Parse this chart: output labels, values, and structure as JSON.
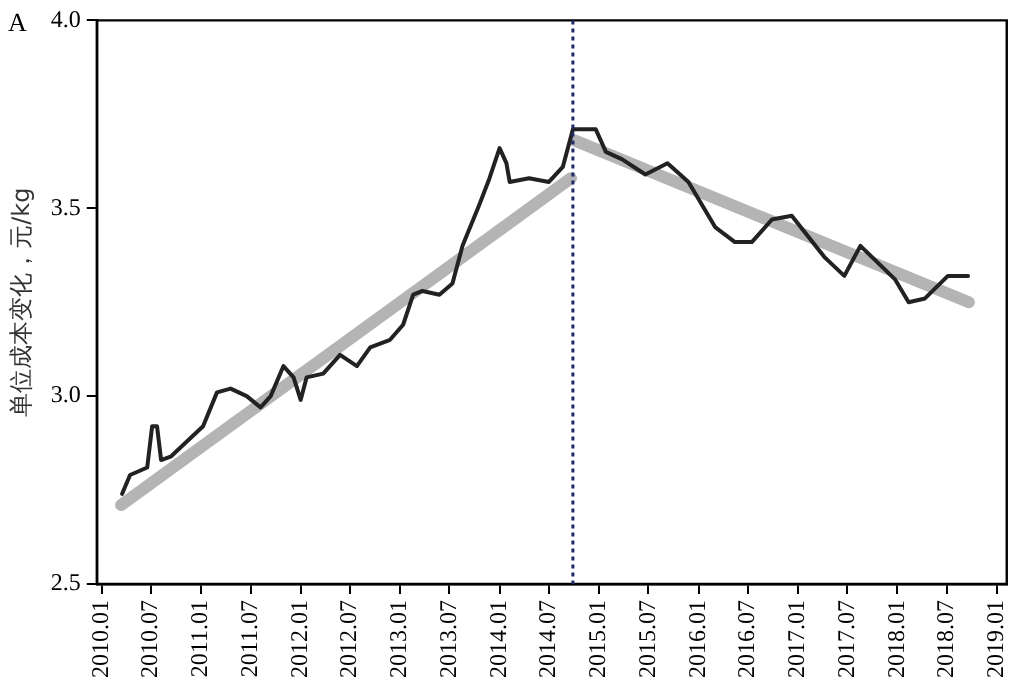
{
  "chart_data": {
    "type": "line",
    "ylabel": "单位成本变化，元/kg",
    "annotations": [
      "A"
    ],
    "xlim": [
      "2009-12-14",
      "2019-02-06"
    ],
    "xticks": [
      {
        "value": "2010-01-01",
        "label": "2010.01"
      },
      {
        "value": "2010-07-01",
        "label": "2010.07"
      },
      {
        "value": "2011-01-01",
        "label": "2011.01"
      },
      {
        "value": "2011-07-01",
        "label": "2011.07"
      },
      {
        "value": "2012-01-01",
        "label": "2012.01"
      },
      {
        "value": "2012-07-01",
        "label": "2012.07"
      },
      {
        "value": "2013-01-01",
        "label": "2013.01"
      },
      {
        "value": "2013-07-01",
        "label": "2013.07"
      },
      {
        "value": "2014-01-01",
        "label": "2014.01"
      },
      {
        "value": "2014-07-01",
        "label": "2014.07"
      },
      {
        "value": "2015-01-01",
        "label": "2015.01"
      },
      {
        "value": "2015-07-01",
        "label": "2015.07"
      },
      {
        "value": "2016-01-01",
        "label": "2016.01"
      },
      {
        "value": "2016-07-01",
        "label": "2016.07"
      },
      {
        "value": "2017-01-01",
        "label": "2017.01"
      },
      {
        "value": "2017-07-01",
        "label": "2017.07"
      },
      {
        "value": "2018-01-01",
        "label": "2018.01"
      },
      {
        "value": "2018-07-01",
        "label": "2018.07"
      },
      {
        "value": "2019-01-01",
        "label": "2019.01"
      }
    ],
    "ylim": [
      2.5,
      4.0
    ],
    "yticks": [
      {
        "value": 2.5,
        "label": "2.5"
      },
      {
        "value": 3.0,
        "label": "3.0"
      },
      {
        "value": 3.5,
        "label": "3.5"
      },
      {
        "value": 4.0,
        "label": "4.0"
      }
    ],
    "grid": false,
    "legend": false,
    "marker": "none",
    "line_style": "solid",
    "ref_lines": [
      {
        "axis": "x",
        "value": "2014-09-27",
        "color": "#1f2a6b",
        "line_style": "dotted"
      }
    ],
    "series": [
      {
        "color": "#b4b4b4",
        "x": [
          "2010-03-13",
          "2014-09-20"
        ],
        "values": [
          2.71,
          3.58
        ]
      },
      {
        "color": "#b4b4b4",
        "x": [
          "2014-10-05",
          "2018-09-20"
        ],
        "values": [
          3.68,
          3.25
        ]
      },
      {
        "color": "#222222",
        "x": [
          "2010-03-17",
          "2010-04-15",
          "2010-06-17",
          "2010-07-05",
          "2010-07-23",
          "2010-08-07",
          "2010-09-13",
          "2010-11-25",
          "2011-01-08",
          "2011-02-28",
          "2011-04-19",
          "2011-06-17",
          "2011-08-07",
          "2011-09-13",
          "2011-10-30",
          "2011-12-06",
          "2012-01-01",
          "2012-01-23",
          "2012-03-24",
          "2012-05-25",
          "2012-07-26",
          "2012-09-13",
          "2012-11-25",
          "2013-01-12",
          "2013-02-18",
          "2013-03-24",
          "2013-05-25",
          "2013-07-12",
          "2013-08-18",
          "2013-10-19",
          "2013-11-25",
          "2014-01-01",
          "2014-01-26",
          "2014-02-07",
          "2014-04-19",
          "2014-07-01",
          "2014-08-21",
          "2014-09-27",
          "2014-12-20",
          "2015-01-26",
          "2015-03-27",
          "2015-06-20",
          "2015-09-09",
          "2015-11-25",
          "2016-03-02",
          "2016-05-14",
          "2016-07-15",
          "2016-09-27",
          "2016-12-09",
          "2017-04-08",
          "2017-06-20",
          "2017-08-18",
          "2017-12-24",
          "2018-02-11",
          "2018-04-12",
          "2018-07-05",
          "2018-09-17"
        ],
        "values": [
          2.74,
          2.79,
          2.81,
          2.92,
          2.92,
          2.83,
          2.84,
          2.89,
          2.92,
          3.01,
          3.02,
          3.0,
          2.97,
          3.0,
          3.08,
          3.05,
          2.99,
          3.05,
          3.06,
          3.11,
          3.08,
          3.13,
          3.15,
          3.19,
          3.27,
          3.28,
          3.27,
          3.3,
          3.4,
          3.51,
          3.58,
          3.66,
          3.62,
          3.57,
          3.58,
          3.57,
          3.61,
          3.71,
          3.71,
          3.65,
          3.63,
          3.59,
          3.62,
          3.57,
          3.45,
          3.41,
          3.41,
          3.47,
          3.48,
          3.37,
          3.32,
          3.4,
          3.31,
          3.25,
          3.26,
          3.32,
          3.32
        ]
      }
    ]
  }
}
